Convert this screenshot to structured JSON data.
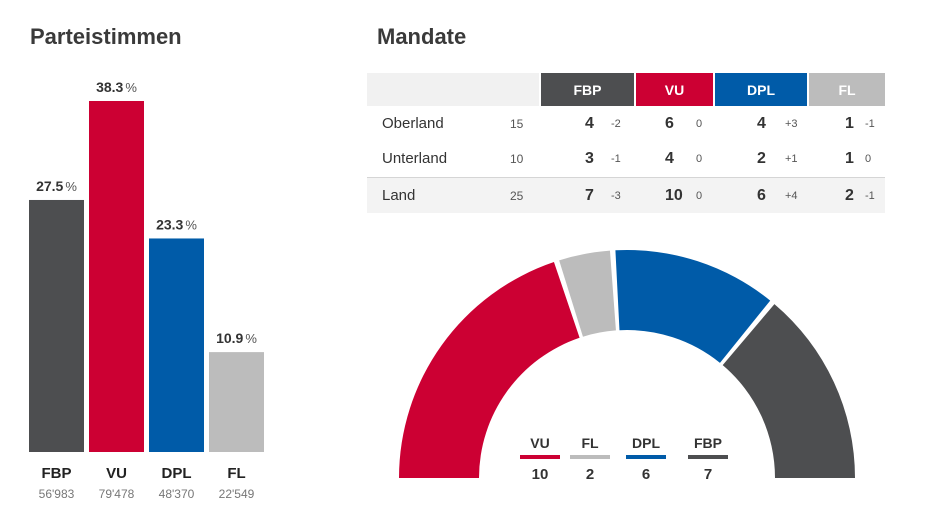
{
  "titles": {
    "left": "Parteistimmen",
    "right": "Mandate"
  },
  "colors": {
    "FBP": "#4d4e50",
    "VU": "#cc0033",
    "DPL": "#005ba8",
    "FL": "#bcbcbc"
  },
  "chart_data": [
    {
      "type": "bar",
      "title": "Parteistimmen",
      "categories": [
        "FBP",
        "VU",
        "DPL",
        "FL"
      ],
      "values": [
        27.5,
        38.3,
        23.3,
        10.9
      ],
      "value_labels": [
        "27.5",
        "38.3",
        "23.3",
        "10.9"
      ],
      "unit": "%",
      "votes": [
        "56'983",
        "79'478",
        "48'370",
        "22'549"
      ],
      "ylim": [
        0,
        38.3
      ]
    },
    {
      "type": "pie",
      "title": "Mandate",
      "order": [
        "VU",
        "FL",
        "DPL",
        "FBP"
      ],
      "values": [
        10,
        2,
        6,
        7
      ],
      "total": 25
    }
  ],
  "table": {
    "parties": [
      "FBP",
      "VU",
      "DPL",
      "FL"
    ],
    "rows": [
      {
        "name": "Oberland",
        "total": "15",
        "seats": [
          "4",
          "6",
          "4",
          "1"
        ],
        "deltas": [
          "-2",
          "0",
          "+3",
          "-1"
        ]
      },
      {
        "name": "Unterland",
        "total": "10",
        "seats": [
          "3",
          "4",
          "2",
          "1"
        ],
        "deltas": [
          "-1",
          "0",
          "+1",
          "0"
        ]
      },
      {
        "name": "Land",
        "total": "25",
        "seats": [
          "7",
          "10",
          "6",
          "2"
        ],
        "deltas": [
          "-3",
          "0",
          "+4",
          "-1"
        ]
      }
    ]
  }
}
